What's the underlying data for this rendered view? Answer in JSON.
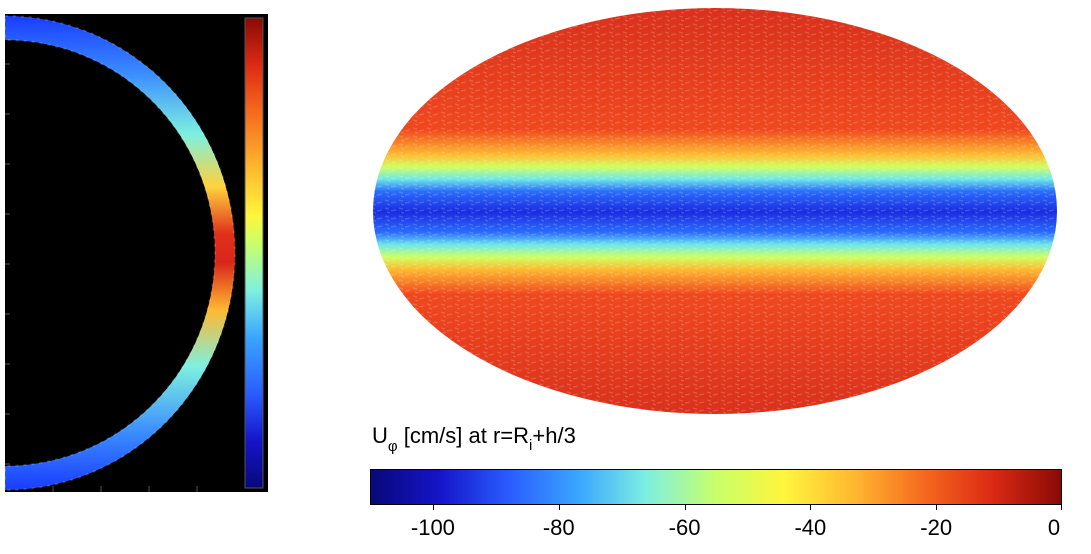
{
  "colorbar": {
    "symbol": "U",
    "subscript": "φ",
    "title_mid": " [cm/s] at r=R",
    "subscript_i": "i",
    "title_end": "+h/3",
    "min": -110,
    "max": 0,
    "ticks": [
      {
        "value": -100,
        "label": "-100"
      },
      {
        "value": -80,
        "label": "-80"
      },
      {
        "value": -60,
        "label": "-60"
      },
      {
        "value": -40,
        "label": "-40"
      },
      {
        "value": -20,
        "label": "-20"
      },
      {
        "value": 0,
        "label": "0"
      }
    ],
    "colors": [
      "#08087a",
      "#1515c8",
      "#2a5cff",
      "#3aa5ff",
      "#7ef0e0",
      "#c8ff6a",
      "#fff53c",
      "#ffb830",
      "#f56a1e",
      "#dc2a14",
      "#8a0a06"
    ]
  },
  "left_panel": {
    "background": "#000000",
    "shell_colors": [
      "#1a3cff",
      "#3aa5ff",
      "#7ef0e0",
      "#ffd23c",
      "#e0301a"
    ]
  },
  "map": {
    "pole_color": "#e0351a",
    "equator_color": "#1a3cff"
  }
}
